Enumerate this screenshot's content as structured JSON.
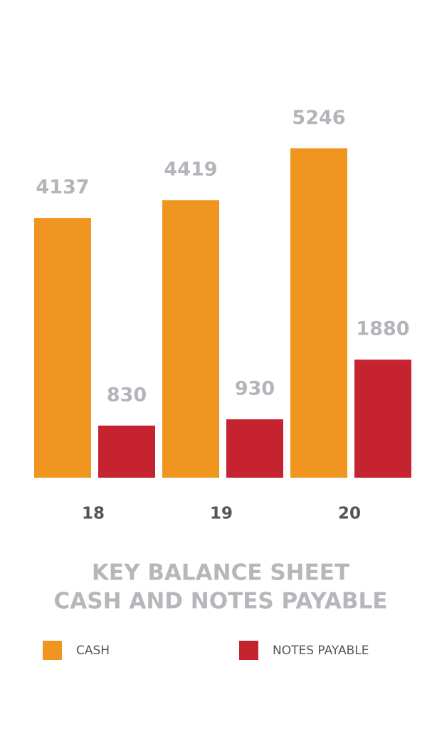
{
  "chart_data": {
    "type": "bar",
    "title": "KEY BALANCE SHEET",
    "subtitle": "CASH AND NOTES PAYABLE",
    "categories": [
      "18",
      "19",
      "20"
    ],
    "series": [
      {
        "name": "CASH",
        "color": "#f0951f",
        "values": [
          4137,
          4419,
          5246
        ]
      },
      {
        "name": "NOTES PAYABLE",
        "color": "#c62330",
        "values": [
          830,
          930,
          1880
        ]
      }
    ]
  }
}
